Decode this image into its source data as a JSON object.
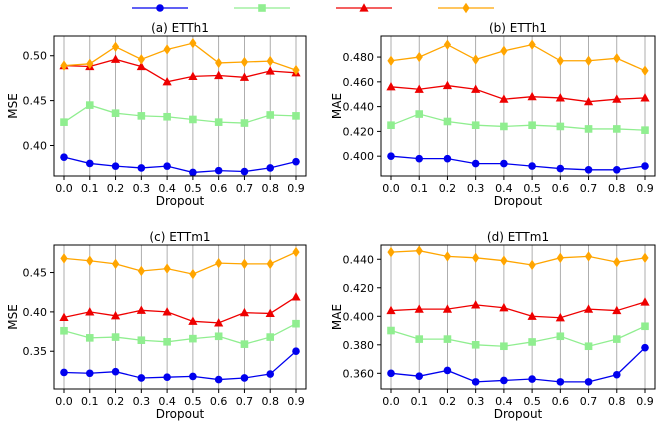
{
  "legend": {
    "placement": "top-center",
    "entries": [
      {
        "color": "#0000ee",
        "marker": "circle"
      },
      {
        "color": "#90ee90",
        "marker": "square"
      },
      {
        "color": "#ee0000",
        "marker": "triangle"
      },
      {
        "color": "#ffa500",
        "marker": "diamond"
      }
    ]
  },
  "chart_data": [
    {
      "type": "line",
      "title": "(a) ETTh1",
      "xlabel": "Dropout",
      "ylabel": "MSE",
      "grid": "vertical",
      "x": [
        0.0,
        0.1,
        0.2,
        0.3,
        0.4,
        0.5,
        0.6,
        0.7,
        0.8,
        0.9
      ],
      "x_tick_labels": [
        "0.0",
        "0.1",
        "0.2",
        "0.3",
        "0.4",
        "0.5",
        "0.6",
        "0.7",
        "0.8",
        "0.9"
      ],
      "ylim": [
        0.366,
        0.522
      ],
      "y_ticks": [
        0.4,
        0.45,
        0.5
      ],
      "y_tick_labels": [
        "0.40",
        "0.45",
        "0.50"
      ],
      "series": [
        {
          "color": "#0000ee",
          "marker": "circle",
          "values": [
            0.387,
            0.38,
            0.377,
            0.375,
            0.377,
            0.37,
            0.372,
            0.371,
            0.375,
            0.382
          ]
        },
        {
          "color": "#90ee90",
          "marker": "square",
          "values": [
            0.426,
            0.445,
            0.436,
            0.433,
            0.432,
            0.429,
            0.426,
            0.425,
            0.434,
            0.433
          ]
        },
        {
          "color": "#ee0000",
          "marker": "triangle",
          "values": [
            0.489,
            0.488,
            0.496,
            0.488,
            0.471,
            0.477,
            0.478,
            0.476,
            0.483,
            0.481
          ]
        },
        {
          "color": "#ffa500",
          "marker": "diamond",
          "values": [
            0.489,
            0.491,
            0.51,
            0.496,
            0.507,
            0.514,
            0.492,
            0.493,
            0.494,
            0.484
          ]
        }
      ]
    },
    {
      "type": "line",
      "title": "(b) ETTh1",
      "xlabel": "Dropout",
      "ylabel": "MAE",
      "grid": "vertical",
      "x": [
        0.0,
        0.1,
        0.2,
        0.3,
        0.4,
        0.5,
        0.6,
        0.7,
        0.8,
        0.9
      ],
      "x_tick_labels": [
        "0.0",
        "0.1",
        "0.2",
        "0.3",
        "0.4",
        "0.5",
        "0.6",
        "0.7",
        "0.8",
        "0.9"
      ],
      "ylim": [
        0.384,
        0.497
      ],
      "y_ticks": [
        0.4,
        0.42,
        0.44,
        0.46,
        0.48
      ],
      "y_tick_labels": [
        "0.400",
        "0.420",
        "0.440",
        "0.460",
        "0.480"
      ],
      "series": [
        {
          "color": "#0000ee",
          "marker": "circle",
          "values": [
            0.4,
            0.398,
            0.398,
            0.394,
            0.394,
            0.392,
            0.39,
            0.389,
            0.389,
            0.392
          ]
        },
        {
          "color": "#90ee90",
          "marker": "square",
          "values": [
            0.425,
            0.434,
            0.428,
            0.425,
            0.424,
            0.425,
            0.424,
            0.422,
            0.422,
            0.421
          ]
        },
        {
          "color": "#ee0000",
          "marker": "triangle",
          "values": [
            0.456,
            0.454,
            0.457,
            0.454,
            0.446,
            0.448,
            0.447,
            0.444,
            0.446,
            0.447
          ]
        },
        {
          "color": "#ffa500",
          "marker": "diamond",
          "values": [
            0.477,
            0.48,
            0.49,
            0.478,
            0.485,
            0.49,
            0.477,
            0.477,
            0.479,
            0.469
          ]
        }
      ]
    },
    {
      "type": "line",
      "title": "(c) ETTm1",
      "xlabel": "Dropout",
      "ylabel": "MSE",
      "grid": "vertical",
      "x": [
        0.0,
        0.1,
        0.2,
        0.3,
        0.4,
        0.5,
        0.6,
        0.7,
        0.8,
        0.9
      ],
      "x_tick_labels": [
        "0.0",
        "0.1",
        "0.2",
        "0.3",
        "0.4",
        "0.5",
        "0.6",
        "0.7",
        "0.8",
        "0.9"
      ],
      "ylim": [
        0.302,
        0.485
      ],
      "y_ticks": [
        0.35,
        0.4,
        0.45
      ],
      "y_tick_labels": [
        "0.35",
        "0.40",
        "0.45"
      ],
      "series": [
        {
          "color": "#0000ee",
          "marker": "circle",
          "values": [
            0.323,
            0.322,
            0.324,
            0.316,
            0.317,
            0.318,
            0.314,
            0.316,
            0.321,
            0.35
          ]
        },
        {
          "color": "#90ee90",
          "marker": "square",
          "values": [
            0.376,
            0.367,
            0.368,
            0.364,
            0.362,
            0.366,
            0.369,
            0.359,
            0.368,
            0.385
          ]
        },
        {
          "color": "#ee0000",
          "marker": "triangle",
          "values": [
            0.393,
            0.4,
            0.395,
            0.402,
            0.4,
            0.388,
            0.386,
            0.399,
            0.398,
            0.419
          ]
        },
        {
          "color": "#ffa500",
          "marker": "diamond",
          "values": [
            0.468,
            0.465,
            0.461,
            0.452,
            0.455,
            0.448,
            0.462,
            0.461,
            0.461,
            0.476
          ]
        }
      ]
    },
    {
      "type": "line",
      "title": "(d) ETTm1",
      "xlabel": "Dropout",
      "ylabel": "MAE",
      "grid": "vertical",
      "x": [
        0.0,
        0.1,
        0.2,
        0.3,
        0.4,
        0.5,
        0.6,
        0.7,
        0.8,
        0.9
      ],
      "x_tick_labels": [
        "0.0",
        "0.1",
        "0.2",
        "0.3",
        "0.4",
        "0.5",
        "0.6",
        "0.7",
        "0.8",
        "0.9"
      ],
      "ylim": [
        0.349,
        0.45
      ],
      "y_ticks": [
        0.36,
        0.38,
        0.4,
        0.42,
        0.44
      ],
      "y_tick_labels": [
        "0.360",
        "0.380",
        "0.400",
        "0.420",
        "0.440"
      ],
      "series": [
        {
          "color": "#0000ee",
          "marker": "circle",
          "values": [
            0.36,
            0.358,
            0.362,
            0.354,
            0.355,
            0.356,
            0.354,
            0.354,
            0.359,
            0.378
          ]
        },
        {
          "color": "#90ee90",
          "marker": "square",
          "values": [
            0.39,
            0.384,
            0.384,
            0.38,
            0.379,
            0.382,
            0.386,
            0.379,
            0.384,
            0.393
          ]
        },
        {
          "color": "#ee0000",
          "marker": "triangle",
          "values": [
            0.404,
            0.405,
            0.405,
            0.408,
            0.406,
            0.4,
            0.399,
            0.405,
            0.404,
            0.41
          ]
        },
        {
          "color": "#ffa500",
          "marker": "diamond",
          "values": [
            0.445,
            0.446,
            0.442,
            0.441,
            0.439,
            0.436,
            0.441,
            0.442,
            0.438,
            0.441
          ]
        }
      ]
    }
  ]
}
